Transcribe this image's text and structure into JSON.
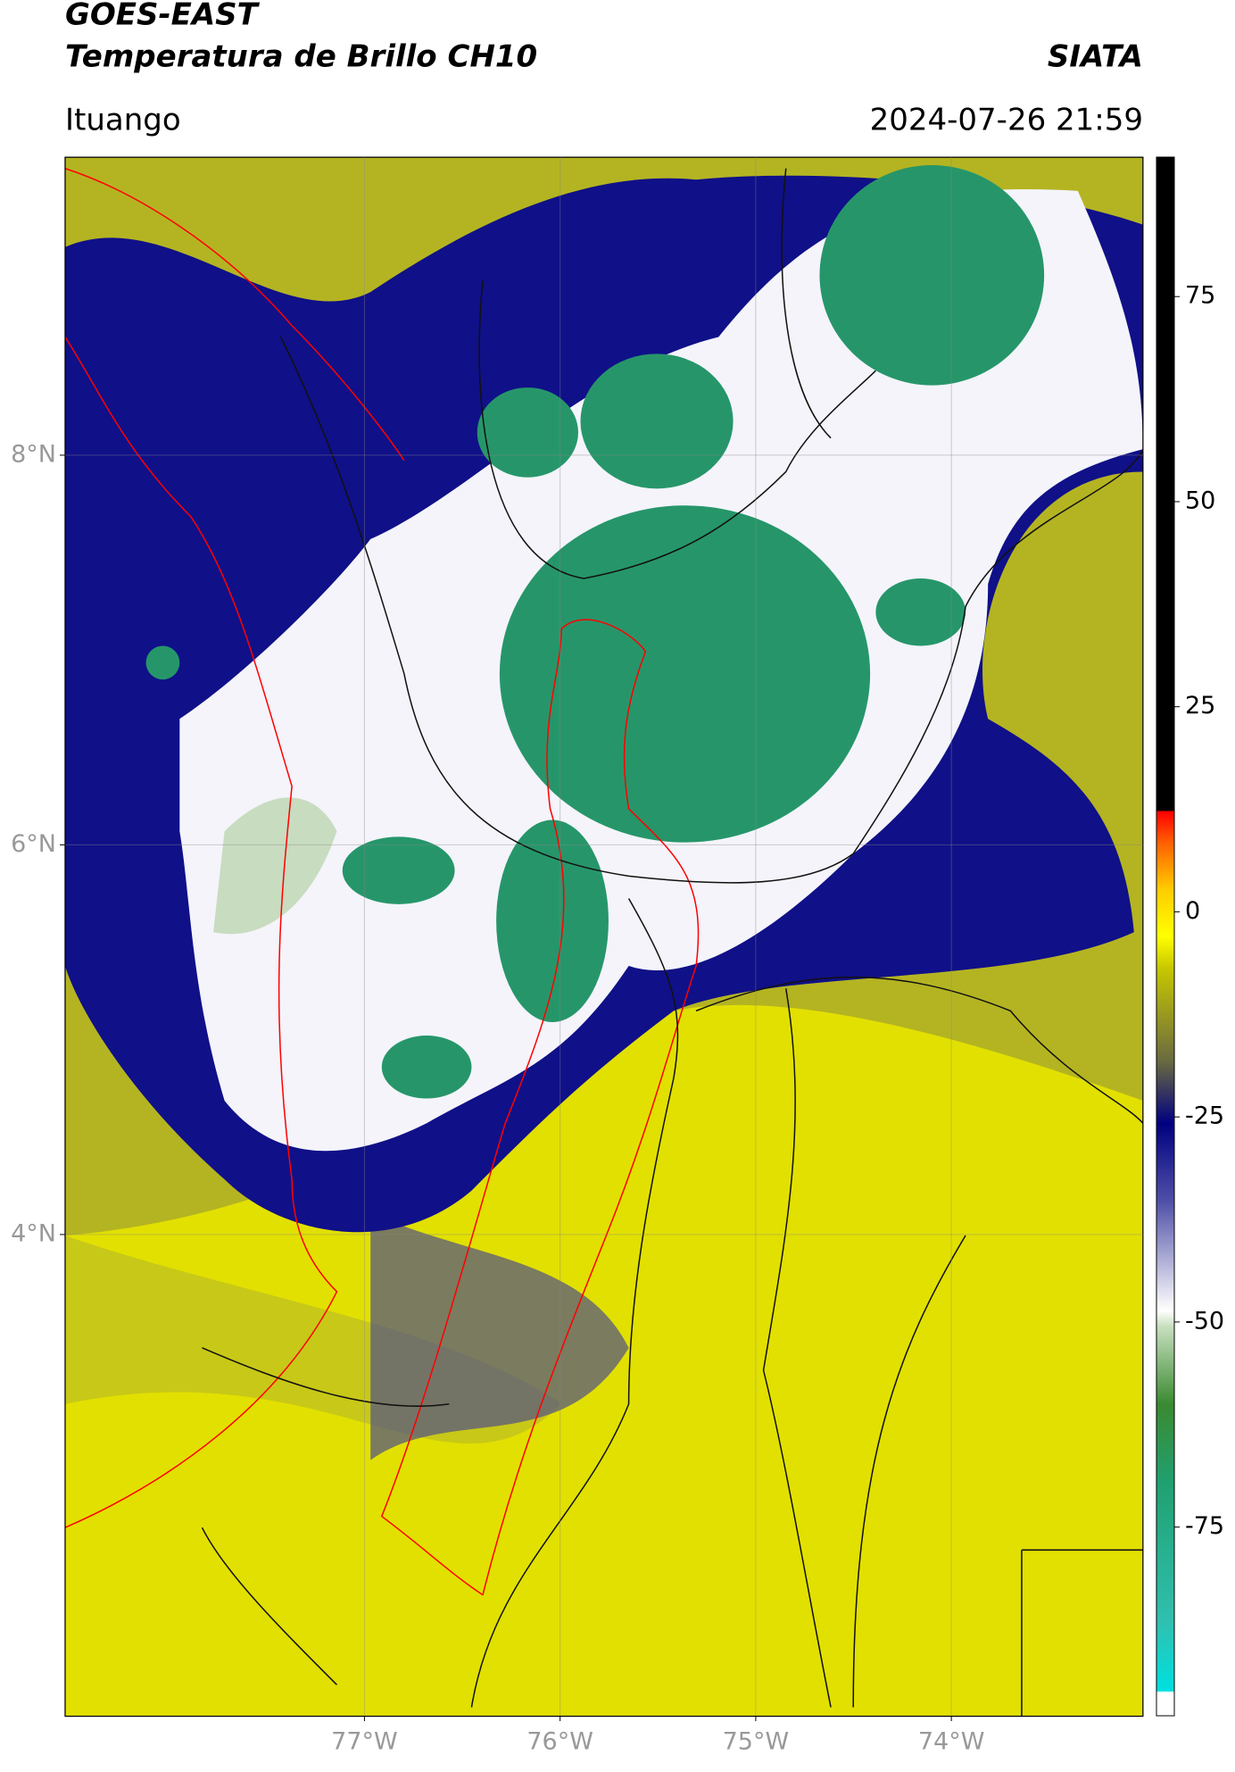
{
  "header": {
    "title": "GOES-EAST",
    "subtitle": "Temperatura de Brillo CH10",
    "brand": "SIATA",
    "region": "Ituango",
    "datetime": "2024-07-26 21:59"
  },
  "map": {
    "xlim": [
      -78.53,
      -73.02
    ],
    "ylim": [
      1.53,
      9.53
    ],
    "xticks": [
      {
        "value": -77,
        "label": "77°W"
      },
      {
        "value": -76,
        "label": "76°W"
      },
      {
        "value": -75,
        "label": "75°W"
      },
      {
        "value": -74,
        "label": "74°W"
      }
    ],
    "yticks": [
      {
        "value": 8,
        "label": "8°N"
      },
      {
        "value": 6,
        "label": "6°N"
      },
      {
        "value": 4,
        "label": "4°N"
      }
    ]
  },
  "colorbar": {
    "lim": [
      -98,
      92
    ],
    "ticks": [
      75,
      50,
      25,
      0,
      -25,
      -50,
      -75
    ]
  }
}
